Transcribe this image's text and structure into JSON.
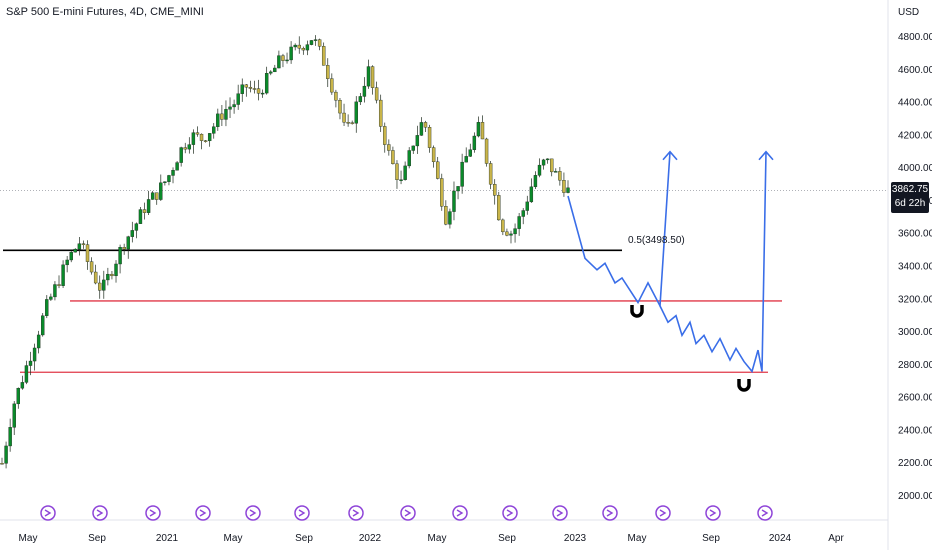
{
  "chart_data": {
    "type": "candlestick",
    "title": "S&P 500 E-mini Futures, 4D, CME_MINI",
    "currency": "USD",
    "last_price": "3862.75",
    "countdown": "6d 22h",
    "ylim": [
      2000,
      4900
    ],
    "yticks": [
      "4800.00",
      "4600.00",
      "4400.00",
      "4200.00",
      "4000.00",
      "3800.00",
      "3600.00",
      "3400.00",
      "3200.00",
      "3000.00",
      "2800.00",
      "2600.00",
      "2400.00",
      "2200.00",
      "2000.00"
    ],
    "xticks": [
      "May",
      "Sep",
      "2021",
      "May",
      "Sep",
      "2022",
      "May",
      "Sep",
      "2023",
      "May",
      "Sep",
      "2024",
      "Apr"
    ],
    "price_path": [
      2200,
      2550,
      2750,
      2950,
      3150,
      3300,
      3450,
      3550,
      3380,
      3250,
      3400,
      3550,
      3650,
      3780,
      3850,
      3950,
      4100,
      4200,
      4180,
      4250,
      4350,
      4400,
      4500,
      4450,
      4550,
      4650,
      4700,
      4750,
      4800,
      4650,
      4450,
      4200,
      4400,
      4600,
      4300,
      4050,
      3900,
      4150,
      4300,
      4000,
      3700,
      3900,
      4100,
      4250,
      3950,
      3650,
      3600,
      3750,
      3950,
      4050,
      3950,
      3862
    ],
    "annotations": [
      {
        "kind": "fib_level",
        "label": "0.5(3498.50)",
        "price": 3498.5,
        "color": "#000000"
      },
      {
        "kind": "support",
        "price": 3190,
        "color": "#e03848"
      },
      {
        "kind": "support",
        "price": 2755,
        "color": "#e03848"
      }
    ],
    "projection_path": [
      3830,
      3450,
      3380,
      3420,
      3300,
      3330,
      3180,
      3300,
      3160,
      4100
    ],
    "projection_path_2": [
      3160,
      3060,
      3100,
      2980,
      3060,
      2930,
      2980,
      2880,
      2960,
      2830,
      2900,
      2820,
      2760,
      2890,
      2760,
      4100
    ],
    "colors": {
      "up": "#0a8a2a",
      "down": "#c9b54a",
      "projection": "#3a6ee8",
      "grid": "#e6e8ee",
      "event": "#8e44d8"
    }
  }
}
